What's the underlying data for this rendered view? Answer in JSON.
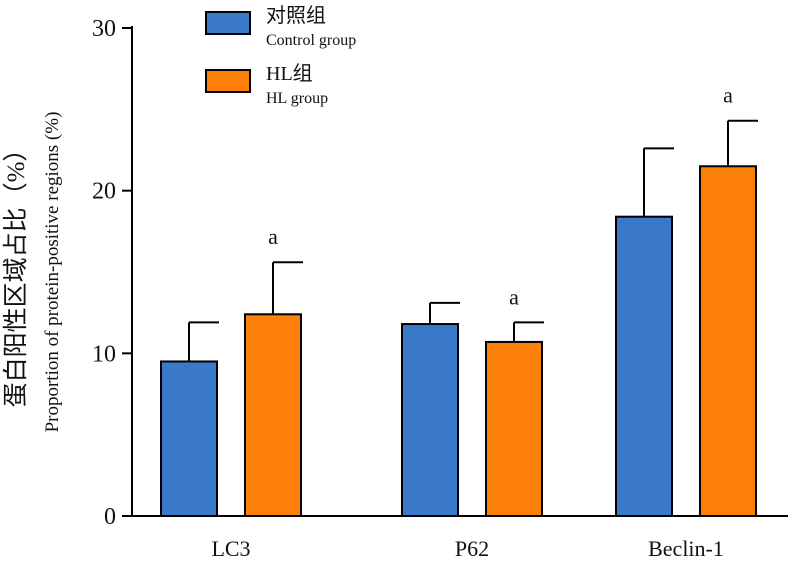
{
  "chart_data": {
    "type": "bar",
    "categories": [
      "LC3",
      "P62",
      "Beclin-1"
    ],
    "ylabel_cn": "蛋白阳性区域占比（%）",
    "ylabel_en": "Proportion of protein-positive regions (%)",
    "ylim": [
      0,
      30
    ],
    "yticks": [
      0,
      10,
      20,
      30
    ],
    "grid": false,
    "legend_position": "top-left",
    "series": [
      {
        "name_cn": "对照组",
        "name_en": "Control group",
        "color": "#3a78c8",
        "values": [
          9.5,
          11.8,
          18.4
        ],
        "errors": [
          2.4,
          1.3,
          4.2
        ],
        "annotations": [
          "",
          "",
          ""
        ]
      },
      {
        "name_cn": "HL组",
        "name_en": "HL group",
        "color": "#fd8008",
        "values": [
          12.4,
          10.7,
          21.5
        ],
        "errors": [
          3.2,
          1.2,
          2.8
        ],
        "annotations": [
          "a",
          "a",
          "a"
        ]
      }
    ]
  }
}
